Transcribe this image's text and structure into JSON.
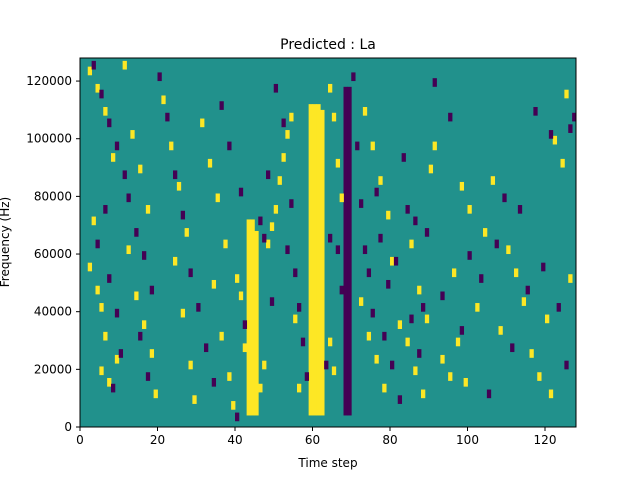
{
  "chart_data": {
    "type": "heatmap",
    "title": "Predicted : La",
    "xlabel": "Time step",
    "ylabel": "Frequency (Hz)",
    "xlim": [
      0,
      128
    ],
    "ylim": [
      0,
      128000
    ],
    "x_ticks": [
      "0",
      "20",
      "40",
      "60",
      "80",
      "100",
      "120"
    ],
    "y_ticks": [
      "0",
      "20000",
      "40000",
      "60000",
      "80000",
      "100000",
      "120000"
    ],
    "rows": 128,
    "cols": 128,
    "colors": {
      "background": "#21918c",
      "high": "#fde725",
      "low": "#440154"
    },
    "value_scale": {
      "background": 0.5,
      "high": 1,
      "low": 0
    },
    "high_columns": [
      {
        "x": 43,
        "y": [
          4000,
          72000
        ]
      },
      {
        "x": 44,
        "y": [
          4000,
          72000
        ]
      },
      {
        "x": 45,
        "y": [
          4000,
          68000
        ]
      },
      {
        "x": 59,
        "y": [
          4000,
          112000
        ]
      },
      {
        "x": 60,
        "y": [
          4000,
          112000
        ]
      },
      {
        "x": 61,
        "y": [
          4000,
          112000
        ]
      },
      {
        "x": 62,
        "y": [
          4000,
          110000
        ]
      }
    ],
    "low_columns": [
      {
        "x": 68,
        "y": [
          4000,
          118000
        ]
      },
      {
        "x": 69,
        "y": [
          4000,
          118000
        ]
      }
    ],
    "high_cells": [
      [
        2,
        122000
      ],
      [
        4,
        116000
      ],
      [
        6,
        108000
      ],
      [
        8,
        92000
      ],
      [
        3,
        70000
      ],
      [
        2,
        54000
      ],
      [
        4,
        46000
      ],
      [
        5,
        40000
      ],
      [
        6,
        30000
      ],
      [
        5,
        18000
      ],
      [
        7,
        14000
      ],
      [
        9,
        22000
      ],
      [
        11,
        124000
      ],
      [
        13,
        100000
      ],
      [
        15,
        88000
      ],
      [
        17,
        74000
      ],
      [
        12,
        60000
      ],
      [
        14,
        44000
      ],
      [
        16,
        34000
      ],
      [
        18,
        24000
      ],
      [
        19,
        10000
      ],
      [
        21,
        112000
      ],
      [
        23,
        96000
      ],
      [
        25,
        82000
      ],
      [
        27,
        66000
      ],
      [
        24,
        56000
      ],
      [
        26,
        38000
      ],
      [
        28,
        20000
      ],
      [
        29,
        8000
      ],
      [
        31,
        104000
      ],
      [
        33,
        90000
      ],
      [
        35,
        78000
      ],
      [
        37,
        62000
      ],
      [
        34,
        48000
      ],
      [
        36,
        30000
      ],
      [
        38,
        16000
      ],
      [
        39,
        6000
      ],
      [
        40,
        50000
      ],
      [
        41,
        44000
      ],
      [
        42,
        26000
      ],
      [
        46,
        12000
      ],
      [
        47,
        20000
      ],
      [
        48,
        62000
      ],
      [
        49,
        68000
      ],
      [
        50,
        74000
      ],
      [
        51,
        84000
      ],
      [
        52,
        92000
      ],
      [
        53,
        100000
      ],
      [
        54,
        106000
      ],
      [
        55,
        36000
      ],
      [
        56,
        12000
      ],
      [
        64,
        116000
      ],
      [
        65,
        106000
      ],
      [
        66,
        90000
      ],
      [
        67,
        78000
      ],
      [
        64,
        28000
      ],
      [
        65,
        18000
      ],
      [
        72,
        42000
      ],
      [
        74,
        30000
      ],
      [
        76,
        22000
      ],
      [
        78,
        12000
      ],
      [
        73,
        108000
      ],
      [
        75,
        96000
      ],
      [
        77,
        84000
      ],
      [
        79,
        72000
      ],
      [
        80,
        56000
      ],
      [
        82,
        34000
      ],
      [
        84,
        28000
      ],
      [
        86,
        18000
      ],
      [
        88,
        10000
      ],
      [
        85,
        62000
      ],
      [
        87,
        46000
      ],
      [
        89,
        36000
      ],
      [
        90,
        88000
      ],
      [
        91,
        96000
      ],
      [
        93,
        22000
      ],
      [
        95,
        16000
      ],
      [
        97,
        28000
      ],
      [
        99,
        14000
      ],
      [
        96,
        52000
      ],
      [
        98,
        82000
      ],
      [
        100,
        74000
      ],
      [
        102,
        40000
      ],
      [
        104,
        66000
      ],
      [
        106,
        84000
      ],
      [
        108,
        32000
      ],
      [
        110,
        60000
      ],
      [
        112,
        52000
      ],
      [
        114,
        42000
      ],
      [
        116,
        24000
      ],
      [
        118,
        16000
      ],
      [
        120,
        36000
      ],
      [
        121,
        10000
      ],
      [
        122,
        98000
      ],
      [
        124,
        90000
      ],
      [
        125,
        114000
      ],
      [
        126,
        50000
      ]
    ],
    "low_cells": [
      [
        3,
        124000
      ],
      [
        5,
        114000
      ],
      [
        7,
        104000
      ],
      [
        9,
        96000
      ],
      [
        11,
        86000
      ],
      [
        6,
        74000
      ],
      [
        4,
        62000
      ],
      [
        7,
        50000
      ],
      [
        9,
        38000
      ],
      [
        10,
        24000
      ],
      [
        8,
        12000
      ],
      [
        12,
        78000
      ],
      [
        14,
        66000
      ],
      [
        16,
        58000
      ],
      [
        18,
        46000
      ],
      [
        15,
        30000
      ],
      [
        17,
        16000
      ],
      [
        20,
        120000
      ],
      [
        22,
        106000
      ],
      [
        24,
        86000
      ],
      [
        26,
        72000
      ],
      [
        28,
        52000
      ],
      [
        30,
        40000
      ],
      [
        32,
        26000
      ],
      [
        34,
        14000
      ],
      [
        36,
        110000
      ],
      [
        38,
        96000
      ],
      [
        40,
        2000
      ],
      [
        41,
        80000
      ],
      [
        42,
        34000
      ],
      [
        46,
        70000
      ],
      [
        47,
        64000
      ],
      [
        48,
        86000
      ],
      [
        49,
        42000
      ],
      [
        50,
        116000
      ],
      [
        52,
        104000
      ],
      [
        53,
        60000
      ],
      [
        54,
        76000
      ],
      [
        55,
        52000
      ],
      [
        56,
        40000
      ],
      [
        57,
        28000
      ],
      [
        58,
        16000
      ],
      [
        63,
        20000
      ],
      [
        64,
        64000
      ],
      [
        66,
        60000
      ],
      [
        67,
        46000
      ],
      [
        70,
        120000
      ],
      [
        71,
        96000
      ],
      [
        72,
        76000
      ],
      [
        73,
        60000
      ],
      [
        74,
        52000
      ],
      [
        75,
        38000
      ],
      [
        76,
        80000
      ],
      [
        77,
        64000
      ],
      [
        78,
        30000
      ],
      [
        79,
        48000
      ],
      [
        80,
        20000
      ],
      [
        81,
        56000
      ],
      [
        82,
        8000
      ],
      [
        83,
        92000
      ],
      [
        84,
        74000
      ],
      [
        85,
        36000
      ],
      [
        86,
        70000
      ],
      [
        87,
        24000
      ],
      [
        88,
        40000
      ],
      [
        89,
        66000
      ],
      [
        91,
        118000
      ],
      [
        93,
        44000
      ],
      [
        95,
        106000
      ],
      [
        98,
        32000
      ],
      [
        100,
        58000
      ],
      [
        103,
        50000
      ],
      [
        105,
        10000
      ],
      [
        107,
        62000
      ],
      [
        109,
        78000
      ],
      [
        111,
        26000
      ],
      [
        113,
        74000
      ],
      [
        115,
        46000
      ],
      [
        117,
        108000
      ],
      [
        119,
        54000
      ],
      [
        121,
        100000
      ],
      [
        123,
        40000
      ],
      [
        125,
        20000
      ],
      [
        126,
        102000
      ],
      [
        127,
        106000
      ]
    ]
  }
}
